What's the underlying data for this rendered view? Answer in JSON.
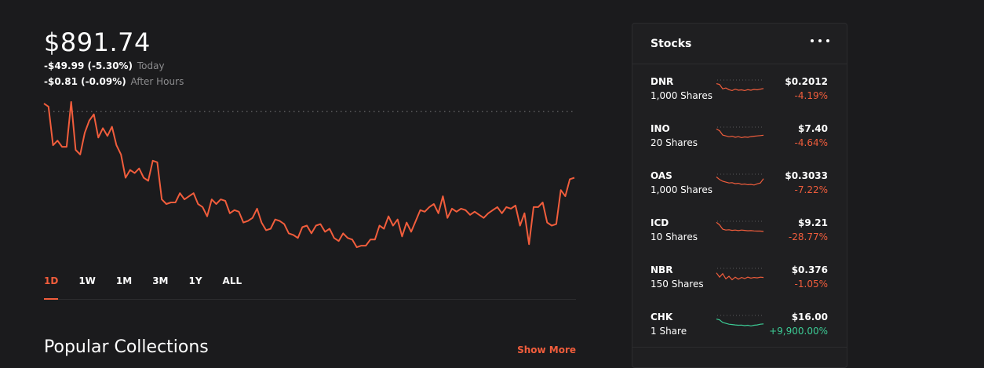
{
  "portfolio": {
    "value": "$891.74",
    "today_change": "-$49.99 (-5.30%)",
    "today_label": "Today",
    "after_hours_change": "-$0.81 (-0.09%)",
    "after_hours_label": "After Hours"
  },
  "range_tabs": [
    {
      "label": "1D",
      "active": true
    },
    {
      "label": "1W",
      "active": false
    },
    {
      "label": "1M",
      "active": false
    },
    {
      "label": "3M",
      "active": false
    },
    {
      "label": "1Y",
      "active": false
    },
    {
      "label": "ALL",
      "active": false
    }
  ],
  "collections": {
    "title": "Popular Collections",
    "show_more": "Show More"
  },
  "stocks_card": {
    "title": "Stocks",
    "more_icon": "more-horizontal-icon",
    "items": [
      {
        "symbol": "DNR",
        "shares": "1,000 Shares",
        "price": "$0.2012",
        "change": "-4.19%",
        "trend": "down",
        "spark": [
          0.3,
          0.35,
          0.6,
          0.55,
          0.65,
          0.7,
          0.62,
          0.68,
          0.66,
          0.7,
          0.65,
          0.68,
          0.63,
          0.66,
          0.62,
          0.58
        ]
      },
      {
        "symbol": "INO",
        "shares": "20 Shares",
        "price": "$7.40",
        "change": "-4.64%",
        "trend": "down",
        "spark": [
          0.2,
          0.3,
          0.55,
          0.6,
          0.65,
          0.62,
          0.68,
          0.64,
          0.7,
          0.66,
          0.68,
          0.64,
          0.62,
          0.6,
          0.58,
          0.56
        ]
      },
      {
        "symbol": "OAS",
        "shares": "1,000 Shares",
        "price": "$0.3033",
        "change": "-7.22%",
        "trend": "down",
        "spark": [
          0.25,
          0.4,
          0.5,
          0.55,
          0.6,
          0.58,
          0.64,
          0.62,
          0.68,
          0.66,
          0.7,
          0.68,
          0.72,
          0.65,
          0.6,
          0.35
        ]
      },
      {
        "symbol": "ICD",
        "shares": "10 Shares",
        "price": "$9.21",
        "change": "-28.77%",
        "trend": "down",
        "spark": [
          0.15,
          0.3,
          0.55,
          0.6,
          0.58,
          0.62,
          0.6,
          0.63,
          0.6,
          0.62,
          0.64,
          0.63,
          0.65,
          0.66,
          0.66,
          0.68
        ]
      },
      {
        "symbol": "NBR",
        "shares": "150 Shares",
        "price": "$0.376",
        "change": "-1.05%",
        "trend": "down",
        "spark": [
          0.35,
          0.6,
          0.4,
          0.7,
          0.55,
          0.75,
          0.6,
          0.72,
          0.62,
          0.68,
          0.6,
          0.66,
          0.62,
          0.64,
          0.6,
          0.62
        ]
      },
      {
        "symbol": "CHK",
        "shares": "1 Share",
        "price": "$16.00",
        "change": "+9,900.00%",
        "trend": "up",
        "spark": [
          0.3,
          0.35,
          0.5,
          0.55,
          0.6,
          0.62,
          0.64,
          0.66,
          0.65,
          0.68,
          0.66,
          0.7,
          0.66,
          0.64,
          0.6,
          0.58
        ]
      }
    ]
  },
  "colors": {
    "background": "#1b1b1d",
    "accent_negative": "#f15d3c",
    "accent_positive": "#3ccb95",
    "muted_text": "#8c8c8e",
    "divider": "#2c2c2e",
    "reference_line": "#5a5a5c"
  },
  "chart_data": {
    "type": "line",
    "title": "",
    "xlabel": "",
    "ylabel": "",
    "grid": false,
    "reference_line": 941.73,
    "ylim": [
      850,
      950
    ],
    "series": [
      {
        "values": [
          947,
          945,
          920,
          923,
          919,
          919,
          948,
          917,
          914,
          928,
          936,
          940,
          925,
          931,
          926,
          932,
          920,
          914,
          899,
          904,
          902,
          905,
          899,
          897,
          910,
          909,
          885,
          882,
          883,
          883,
          889,
          885,
          887,
          889,
          882,
          880,
          874,
          885,
          882,
          885,
          884,
          876,
          878,
          877,
          870,
          871,
          873,
          879,
          870,
          865,
          866,
          872,
          871,
          869,
          863,
          862,
          860,
          867,
          868,
          863,
          868,
          869,
          864,
          866,
          860,
          858,
          863,
          860,
          859,
          854,
          855,
          855,
          859,
          859,
          868,
          866,
          874,
          868,
          872,
          861,
          870,
          864,
          871,
          878,
          877,
          880,
          882,
          876,
          887,
          873,
          879,
          877,
          879,
          878,
          875,
          877,
          875,
          873,
          876,
          878,
          880,
          876,
          880,
          879,
          881,
          868,
          876,
          856,
          880,
          880,
          883,
          870,
          868,
          869,
          891,
          887,
          898,
          899
        ]
      }
    ]
  }
}
